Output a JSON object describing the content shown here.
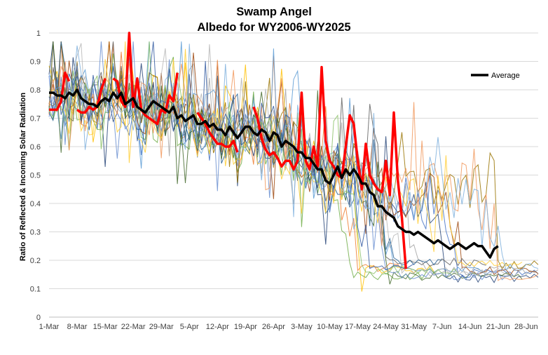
{
  "chart_data": {
    "type": "line",
    "title": "Swamp Angel",
    "subtitle": "Albedo for WY2006-WY2025",
    "xlabel": "",
    "ylabel": "Ratio of Reflected & Incoming Solar Radiation",
    "ylim": [
      0,
      1
    ],
    "y_ticks": [
      "0",
      "0.1",
      "0.2",
      "0.3",
      "0.4",
      "0.5",
      "0.6",
      "0.7",
      "0.8",
      "0.9",
      "1"
    ],
    "x_ticks": [
      "1-Mar",
      "8-Mar",
      "15-Mar",
      "22-Mar",
      "29-Mar",
      "5-Apr",
      "12-Apr",
      "19-Apr",
      "26-Apr",
      "3-May",
      "10-May",
      "17-May",
      "24-May",
      "31-May",
      "7-Jun",
      "14-Jun",
      "21-Jun",
      "28-Jun"
    ],
    "x_range_days": [
      0,
      122
    ],
    "grid": "horizontal",
    "legend_position": "top-right",
    "legend": [
      "Average"
    ],
    "series": [
      {
        "name": "Average",
        "color": "#000000",
        "x_day": [
          0,
          1,
          2,
          3,
          4,
          5,
          6,
          7,
          8,
          9,
          10,
          11,
          12,
          13,
          14,
          15,
          16,
          17,
          18,
          19,
          20,
          21,
          22,
          23,
          24,
          25,
          26,
          27,
          28,
          29,
          30,
          31,
          32,
          33,
          34,
          35,
          36,
          37,
          38,
          39,
          40,
          41,
          42,
          43,
          44,
          45,
          46,
          47,
          48,
          49,
          50,
          51,
          52,
          53,
          54,
          55,
          56,
          57,
          58,
          59,
          60,
          61,
          62,
          63,
          64,
          65,
          66,
          67,
          68,
          69,
          70,
          71,
          72,
          73,
          74,
          75,
          76,
          77,
          78,
          79,
          80,
          81,
          82,
          83,
          84,
          85,
          86,
          87,
          88,
          89,
          90,
          91,
          92,
          93,
          94,
          95,
          96,
          97,
          98,
          99,
          100,
          101,
          102,
          103,
          104,
          105,
          106,
          107,
          108,
          109,
          110,
          111,
          112
        ],
        "y": [
          0.79,
          0.79,
          0.78,
          0.78,
          0.77,
          0.79,
          0.78,
          0.8,
          0.77,
          0.76,
          0.75,
          0.75,
          0.74,
          0.76,
          0.77,
          0.76,
          0.79,
          0.77,
          0.79,
          0.75,
          0.76,
          0.77,
          0.74,
          0.73,
          0.72,
          0.74,
          0.76,
          0.75,
          0.74,
          0.73,
          0.72,
          0.74,
          0.7,
          0.71,
          0.69,
          0.7,
          0.71,
          0.68,
          0.68,
          0.69,
          0.67,
          0.68,
          0.66,
          0.66,
          0.64,
          0.67,
          0.65,
          0.63,
          0.65,
          0.67,
          0.67,
          0.65,
          0.64,
          0.66,
          0.65,
          0.62,
          0.65,
          0.64,
          0.6,
          0.62,
          0.61,
          0.6,
          0.58,
          0.58,
          0.56,
          0.56,
          0.54,
          0.52,
          0.52,
          0.48,
          0.47,
          0.5,
          0.53,
          0.49,
          0.52,
          0.5,
          0.52,
          0.5,
          0.47,
          0.47,
          0.44,
          0.43,
          0.39,
          0.39,
          0.37,
          0.36,
          0.35,
          0.32,
          0.31,
          0.3,
          0.3,
          0.29,
          0.3,
          0.29,
          0.28,
          0.27,
          0.26,
          0.27,
          0.26,
          0.25,
          0.24,
          0.25,
          0.26,
          0.25,
          0.24,
          0.25,
          0.26,
          0.25,
          0.25,
          0.23,
          0.21,
          0.24,
          0.25
        ]
      },
      {
        "name": "",
        "color": "#ff0000",
        "x_day": [
          0,
          1,
          2,
          3,
          4,
          5,
          6,
          7,
          8,
          9,
          10,
          11,
          12,
          13,
          14,
          15,
          16,
          17,
          18,
          19,
          20,
          21,
          22,
          23,
          24,
          25,
          26,
          27,
          28,
          29,
          30,
          31,
          32,
          33,
          34,
          35,
          36,
          37,
          38,
          39,
          40,
          41,
          42,
          43,
          44,
          45,
          46,
          47,
          48,
          49,
          50,
          51,
          52,
          53,
          54,
          55,
          56,
          57,
          58,
          59,
          60,
          61,
          62,
          63,
          64,
          65,
          66,
          67,
          68,
          69,
          70,
          71,
          72,
          73,
          74,
          75,
          76,
          77,
          78,
          79,
          80,
          81,
          82,
          83,
          84,
          85,
          86,
          87,
          88,
          89
        ],
        "y": [
          0.73,
          0.73,
          0.73,
          0.76,
          0.86,
          0.83,
          null,
          0.73,
          0.72,
          0.72,
          0.74,
          0.73,
          0.74,
          0.8,
          0.84,
          null,
          0.84,
          0.83,
          0.76,
          0.74,
          1.0,
          0.74,
          0.84,
          0.73,
          0.71,
          0.7,
          0.69,
          0.68,
          0.73,
          0.72,
          0.78,
          0.76,
          0.86,
          null,
          null,
          null,
          null,
          0.72,
          0.7,
          0.68,
          0.65,
          0.63,
          0.61,
          0.61,
          0.6,
          0.6,
          0.62,
          0.58,
          null,
          null,
          null,
          0.74,
          0.7,
          0.63,
          0.59,
          0.57,
          0.58,
          0.56,
          0.53,
          0.55,
          0.55,
          0.52,
          0.55,
          0.79,
          0.55,
          0.52,
          0.6,
          0.53,
          0.88,
          0.62,
          0.55,
          0.53,
          0.5,
          0.49,
          0.6,
          0.71,
          0.68,
          0.55,
          0.45,
          0.61,
          0.5,
          0.47,
          0.45,
          0.44,
          0.55,
          0.43,
          0.72,
          0.48,
          0.35,
          0.17
        ]
      }
    ],
    "other_series_count": 19,
    "other_series_colors": [
      "#4472c4",
      "#ed7d31",
      "#a5a5a5",
      "#ffc000",
      "#5b9bd5",
      "#70ad47",
      "#264478",
      "#9e480e",
      "#636363",
      "#997300",
      "#255e91",
      "#43682b",
      "#698ed0",
      "#f1975a",
      "#b7b7b7",
      "#ffcd33",
      "#7cafdd",
      "#8cc168",
      "#335aa1"
    ],
    "legend_color": "#000000"
  }
}
